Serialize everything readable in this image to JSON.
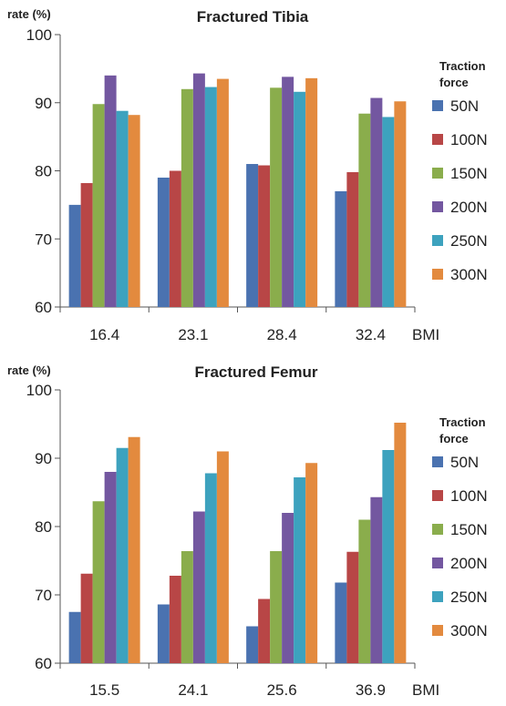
{
  "chart_data": [
    {
      "type": "bar",
      "title": "Fractured Tibia",
      "ylabel": "rate (%)",
      "xlabel": "BMI",
      "ylim": [
        60,
        100
      ],
      "yticks": [
        60,
        70,
        80,
        90,
        100
      ],
      "categories": [
        "16.4",
        "23.1",
        "28.4",
        "32.4"
      ],
      "legend_title": [
        "Traction",
        "force"
      ],
      "legend_position": "right",
      "series": [
        {
          "name": "50N",
          "color": "#4a72b0",
          "values": [
            75.0,
            79.0,
            81.0,
            77.0
          ]
        },
        {
          "name": "100N",
          "color": "#b84646",
          "values": [
            78.2,
            80.0,
            80.8,
            79.8
          ]
        },
        {
          "name": "150N",
          "color": "#8aad4c",
          "values": [
            89.8,
            92.0,
            92.2,
            88.4
          ]
        },
        {
          "name": "200N",
          "color": "#7357a0",
          "values": [
            94.0,
            94.3,
            93.8,
            90.7
          ]
        },
        {
          "name": "250N",
          "color": "#3da2be",
          "values": [
            88.8,
            92.3,
            91.6,
            87.9
          ]
        },
        {
          "name": "300N",
          "color": "#e38a3e",
          "values": [
            88.2,
            93.5,
            93.6,
            90.2
          ]
        }
      ]
    },
    {
      "type": "bar",
      "title": "Fractured Femur",
      "ylabel": "rate (%)",
      "xlabel": "BMI",
      "ylim": [
        60,
        100
      ],
      "yticks": [
        60,
        70,
        80,
        90,
        100
      ],
      "categories": [
        "15.5",
        "24.1",
        "25.6",
        "36.9"
      ],
      "legend_title": [
        "Traction",
        "force"
      ],
      "legend_position": "right",
      "series": [
        {
          "name": "50N",
          "color": "#4a72b0",
          "values": [
            67.5,
            68.6,
            65.4,
            71.8
          ]
        },
        {
          "name": "100N",
          "color": "#b84646",
          "values": [
            73.1,
            72.8,
            69.4,
            76.3
          ]
        },
        {
          "name": "150N",
          "color": "#8aad4c",
          "values": [
            83.7,
            76.4,
            76.4,
            81.0
          ]
        },
        {
          "name": "200N",
          "color": "#7357a0",
          "values": [
            88.0,
            82.2,
            82.0,
            84.3
          ]
        },
        {
          "name": "250N",
          "color": "#3da2be",
          "values": [
            91.5,
            87.8,
            87.2,
            91.2
          ]
        },
        {
          "name": "300N",
          "color": "#e38a3e",
          "values": [
            93.1,
            91.0,
            89.3,
            95.2
          ]
        }
      ]
    }
  ]
}
